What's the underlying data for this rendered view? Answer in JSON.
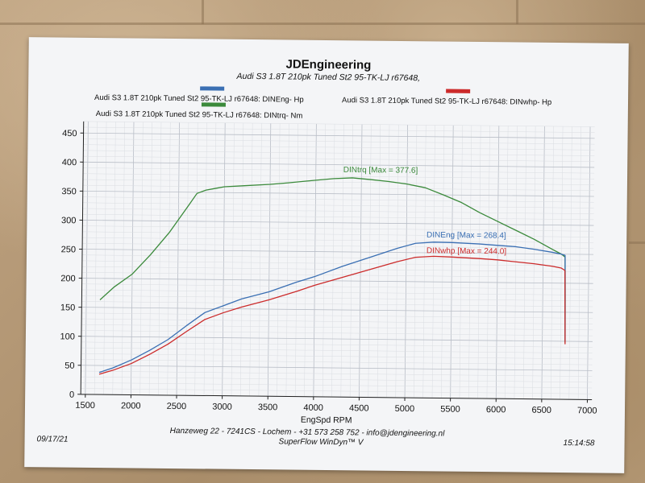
{
  "header": {
    "title": "JDEngineering",
    "subtitle": "Audi S3 1.8T 210pk Tuned St2 95-TK-LJ  r67648,"
  },
  "legend": [
    {
      "label": "Audi S3 1.8T 210pk Tuned St2 95-TK-LJ   r67648: DINEng- Hp",
      "color": "#3a6fb3"
    },
    {
      "label": "Audi S3 1.8T 210pk Tuned St2 95-TK-LJ   r67648: DINwhp-  Hp",
      "color": "#cc2b2b"
    },
    {
      "label": "Audi S3 1.8T 210pk Tuned St2 95-TK-LJ   r67648: DINtrq- Nm",
      "color": "#3b8a3b"
    }
  ],
  "footer": {
    "date": "09/17/21",
    "address": "Hanzeweg 22 - 7241CS - Lochem - +31 573 258 752 - info@jdengineering.nl",
    "software": "SuperFlow WinDyn™ V",
    "time": "15:14:58"
  },
  "chart_data": {
    "type": "line",
    "title": "JDEngineering",
    "xlabel": "EngSpd  RPM",
    "ylabel": "",
    "xlim": [
      1450,
      7050
    ],
    "ylim": [
      0,
      470
    ],
    "x_ticks": [
      1500,
      2000,
      2500,
      3000,
      3500,
      4000,
      4500,
      5000,
      5500,
      6000,
      6500,
      7000
    ],
    "y_ticks": [
      0,
      50,
      100,
      150,
      200,
      250,
      300,
      350,
      400,
      450
    ],
    "grid": true,
    "series": [
      {
        "name": "DINtrq",
        "color": "#3b8a3b",
        "annotation": "DINtrq [Max = 377.6]",
        "x": [
          1650,
          1800,
          2000,
          2200,
          2400,
          2600,
          2700,
          2800,
          2900,
          3000,
          3200,
          3500,
          3700,
          4000,
          4200,
          4400,
          4600,
          4800,
          5000,
          5200,
          5400,
          5600,
          5800,
          6000,
          6200,
          6400,
          6600,
          6700,
          6740,
          6745,
          6750
        ],
        "y": [
          163,
          185,
          208,
          242,
          280,
          325,
          348,
          354,
          357,
          360,
          362,
          365,
          368,
          373,
          376,
          377.6,
          375,
          372,
          368,
          362,
          350,
          337,
          320,
          305,
          290,
          275,
          258,
          250,
          245,
          180,
          98
        ]
      },
      {
        "name": "DINEng",
        "color": "#3a6fb3",
        "annotation": "DINEng [Max = 268.4]",
        "x": [
          1650,
          1800,
          2000,
          2200,
          2400,
          2600,
          2800,
          3000,
          3200,
          3500,
          3800,
          4000,
          4300,
          4600,
          4900,
          5100,
          5300,
          5500,
          5800,
          6000,
          6200,
          6400,
          6600,
          6700,
          6740,
          6745,
          6750
        ],
        "y": [
          38,
          46,
          60,
          77,
          96,
          120,
          143,
          155,
          167,
          180,
          197,
          207,
          225,
          241,
          257,
          266,
          268.4,
          268,
          266,
          264,
          262,
          258,
          253,
          250,
          248,
          170,
          100
        ]
      },
      {
        "name": "DINwhp",
        "color": "#cc2b2b",
        "annotation": "DINwhp [Max = 244.0]",
        "x": [
          1650,
          1800,
          2000,
          2200,
          2400,
          2600,
          2800,
          3000,
          3200,
          3500,
          3800,
          4000,
          4300,
          4600,
          4900,
          5100,
          5300,
          5500,
          5800,
          6000,
          6200,
          6400,
          6600,
          6700,
          6740,
          6745,
          6750
        ],
        "y": [
          35,
          42,
          54,
          70,
          88,
          110,
          131,
          143,
          153,
          166,
          181,
          192,
          206,
          220,
          234,
          242,
          244.0,
          243,
          241,
          239,
          236,
          233,
          229,
          226,
          222,
          150,
          95
        ]
      }
    ]
  }
}
